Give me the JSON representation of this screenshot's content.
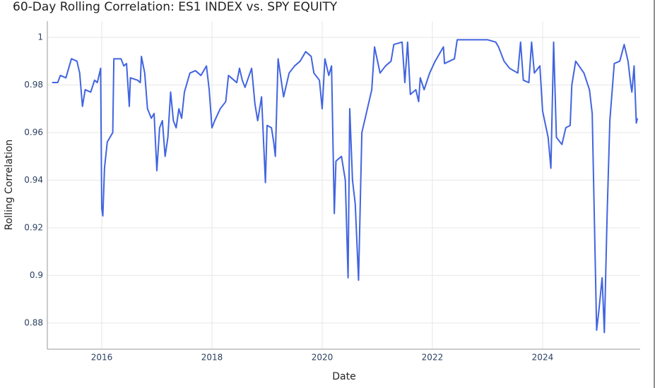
{
  "chart_data": {
    "type": "line",
    "title": "60-Day Rolling Correlation: ES1 INDEX vs. SPY EQUITY",
    "x_label": "Date",
    "y_label": "Rolling Correlation",
    "xlim": [
      2015.013,
      2025.77
    ],
    "xticks": [
      2016,
      2018,
      2020,
      2022,
      2024
    ],
    "ylim": [
      0.869,
      1.0068
    ],
    "yticks": [
      0.88,
      0.9,
      0.92,
      0.94,
      0.96,
      0.98,
      1
    ],
    "grid": true,
    "series": [
      {
        "name": "Rolling Correlation",
        "color": "#4164e0",
        "x": [
          2015.1,
          2015.2,
          2015.25,
          2015.35,
          2015.45,
          2015.55,
          2015.6,
          2015.65,
          2015.7,
          2015.8,
          2015.87,
          2015.92,
          2015.98,
          2016.0,
          2016.02,
          2016.05,
          2016.1,
          2016.2,
          2016.22,
          2016.35,
          2016.4,
          2016.45,
          2016.5,
          2016.52,
          2016.65,
          2016.7,
          2016.72,
          2016.78,
          2016.83,
          2016.9,
          2016.95,
          2017.0,
          2017.05,
          2017.1,
          2017.15,
          2017.2,
          2017.25,
          2017.3,
          2017.35,
          2017.4,
          2017.45,
          2017.5,
          2017.6,
          2017.7,
          2017.8,
          2017.9,
          2017.95,
          2018.0,
          2018.05,
          2018.15,
          2018.25,
          2018.3,
          2018.45,
          2018.5,
          2018.55,
          2018.6,
          2018.72,
          2018.78,
          2018.83,
          2018.9,
          2018.97,
          2019.0,
          2019.08,
          2019.12,
          2019.15,
          2019.2,
          2019.3,
          2019.4,
          2019.5,
          2019.6,
          2019.7,
          2019.8,
          2019.85,
          2019.95,
          2020.0,
          2020.05,
          2020.12,
          2020.17,
          2020.22,
          2020.25,
          2020.35,
          2020.42,
          2020.47,
          2020.5,
          2020.55,
          2020.6,
          2020.66,
          2020.72,
          2020.8,
          2020.9,
          2020.95,
          2021.05,
          2021.15,
          2021.25,
          2021.3,
          2021.45,
          2021.5,
          2021.55,
          2021.6,
          2021.7,
          2021.75,
          2021.78,
          2021.85,
          2021.95,
          2022.05,
          2022.2,
          2022.22,
          2022.4,
          2022.45,
          2022.8,
          2023.0,
          2023.15,
          2023.2,
          2023.3,
          2023.4,
          2023.55,
          2023.6,
          2023.65,
          2023.75,
          2023.8,
          2023.85,
          2023.95,
          2024.0,
          2024.1,
          2024.15,
          2024.2,
          2024.25,
          2024.35,
          2024.42,
          2024.5,
          2024.53,
          2024.6,
          2024.75,
          2024.85,
          2024.9,
          2024.98,
          2025.02,
          2025.08,
          2025.12,
          2025.17,
          2025.22,
          2025.3,
          2025.4,
          2025.48,
          2025.55,
          2025.6,
          2025.62,
          2025.66,
          2025.7,
          2025.72
        ],
        "values": [
          0.981,
          0.981,
          0.984,
          0.983,
          0.991,
          0.99,
          0.985,
          0.971,
          0.978,
          0.977,
          0.982,
          0.981,
          0.987,
          0.928,
          0.925,
          0.945,
          0.956,
          0.96,
          0.991,
          0.991,
          0.988,
          0.989,
          0.971,
          0.983,
          0.982,
          0.981,
          0.992,
          0.985,
          0.97,
          0.966,
          0.968,
          0.944,
          0.962,
          0.965,
          0.95,
          0.958,
          0.977,
          0.965,
          0.962,
          0.97,
          0.966,
          0.977,
          0.985,
          0.986,
          0.984,
          0.988,
          0.978,
          0.962,
          0.965,
          0.97,
          0.973,
          0.984,
          0.981,
          0.987,
          0.982,
          0.979,
          0.987,
          0.972,
          0.965,
          0.975,
          0.939,
          0.963,
          0.962,
          0.956,
          0.95,
          0.991,
          0.975,
          0.985,
          0.988,
          0.99,
          0.994,
          0.992,
          0.985,
          0.982,
          0.97,
          0.991,
          0.984,
          0.988,
          0.926,
          0.948,
          0.95,
          0.94,
          0.899,
          0.97,
          0.94,
          0.93,
          0.898,
          0.96,
          0.968,
          0.978,
          0.996,
          0.985,
          0.988,
          0.99,
          0.997,
          0.998,
          0.981,
          0.998,
          0.976,
          0.978,
          0.973,
          0.983,
          0.978,
          0.985,
          0.99,
          0.996,
          0.989,
          0.991,
          0.999,
          0.999,
          0.999,
          0.998,
          0.996,
          0.99,
          0.987,
          0.985,
          0.998,
          0.982,
          0.981,
          0.998,
          0.985,
          0.988,
          0.969,
          0.958,
          0.945,
          0.998,
          0.958,
          0.955,
          0.962,
          0.963,
          0.98,
          0.99,
          0.985,
          0.978,
          0.968,
          0.877,
          0.885,
          0.899,
          0.876,
          0.925,
          0.965,
          0.989,
          0.99,
          0.997,
          0.99,
          0.98,
          0.977,
          0.988,
          0.964,
          0.966
        ]
      }
    ]
  }
}
